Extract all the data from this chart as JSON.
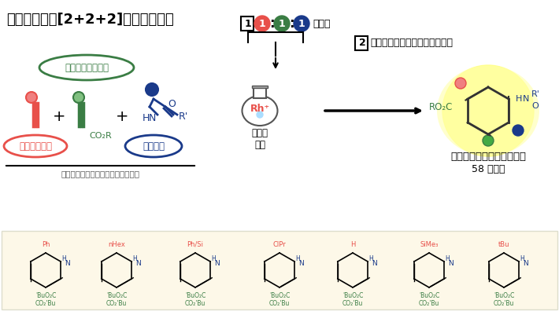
{
  "title": "今回開発した[2+2+2]付加環化反応",
  "bg_color": "#ffffff",
  "bottom_bg_color": "#fdf8e8",
  "title_fontsize": 13,
  "label1": "電子不足アルキン",
  "label2": "末端アルキン",
  "label3": "エナミド",
  "label4": "触媒の\n溶液",
  "label5": "含窒素シクロヘキサジエン",
  "label6": "58 例成功",
  "label7": "「不飽和結合」を有する類似化合物",
  "step1_text": "1  1:1:1 で混合",
  "step2_text": "2  原料分子を同時に加えるだけ！",
  "rh_text": "Rh⁺",
  "co2r_text": "CO₂R",
  "ro2c_text": "RO₂C",
  "rp_text": "R'",
  "colors": {
    "red": "#e8504a",
    "green": "#3a7d44",
    "blue": "#1a3a8a",
    "dark": "#222222",
    "pink": "#f08080",
    "yellow_bg": "#ffff80"
  }
}
